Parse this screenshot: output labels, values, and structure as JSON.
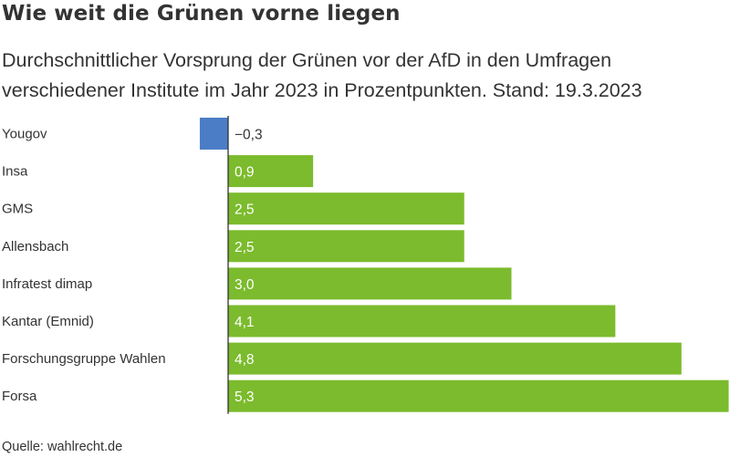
{
  "title": "Wie weit die Grünen vorne liegen",
  "subtitle": "Durchschnittlicher Vorsprung der Grünen vor der AfD in den Umfragen verschiedener Institute im Jahr 2023 in Prozentpunkten. Stand: 19.3.2023",
  "source": "Quelle: wahlrecht.de",
  "colors": {
    "positive": "#7bbb2d",
    "negative": "#4b7dc6",
    "axis": "#333333",
    "text": "#333333"
  },
  "chart_data": {
    "type": "bar",
    "orientation": "horizontal",
    "categories": [
      "Yougov",
      "Insa",
      "GMS",
      "Allensbach",
      "Infratest dimap",
      "Kantar (Emnid)",
      "Forschungsgruppe Wahlen",
      "Forsa"
    ],
    "values": [
      -0.3,
      0.9,
      2.5,
      2.5,
      3.0,
      4.1,
      4.8,
      5.3
    ],
    "value_labels": [
      "−0,3",
      "0,9",
      "2,5",
      "2,5",
      "3,0",
      "4,1",
      "4,8",
      "5,3"
    ],
    "xlim": [
      -0.3,
      5.3
    ],
    "grid": false,
    "legend": "none"
  }
}
